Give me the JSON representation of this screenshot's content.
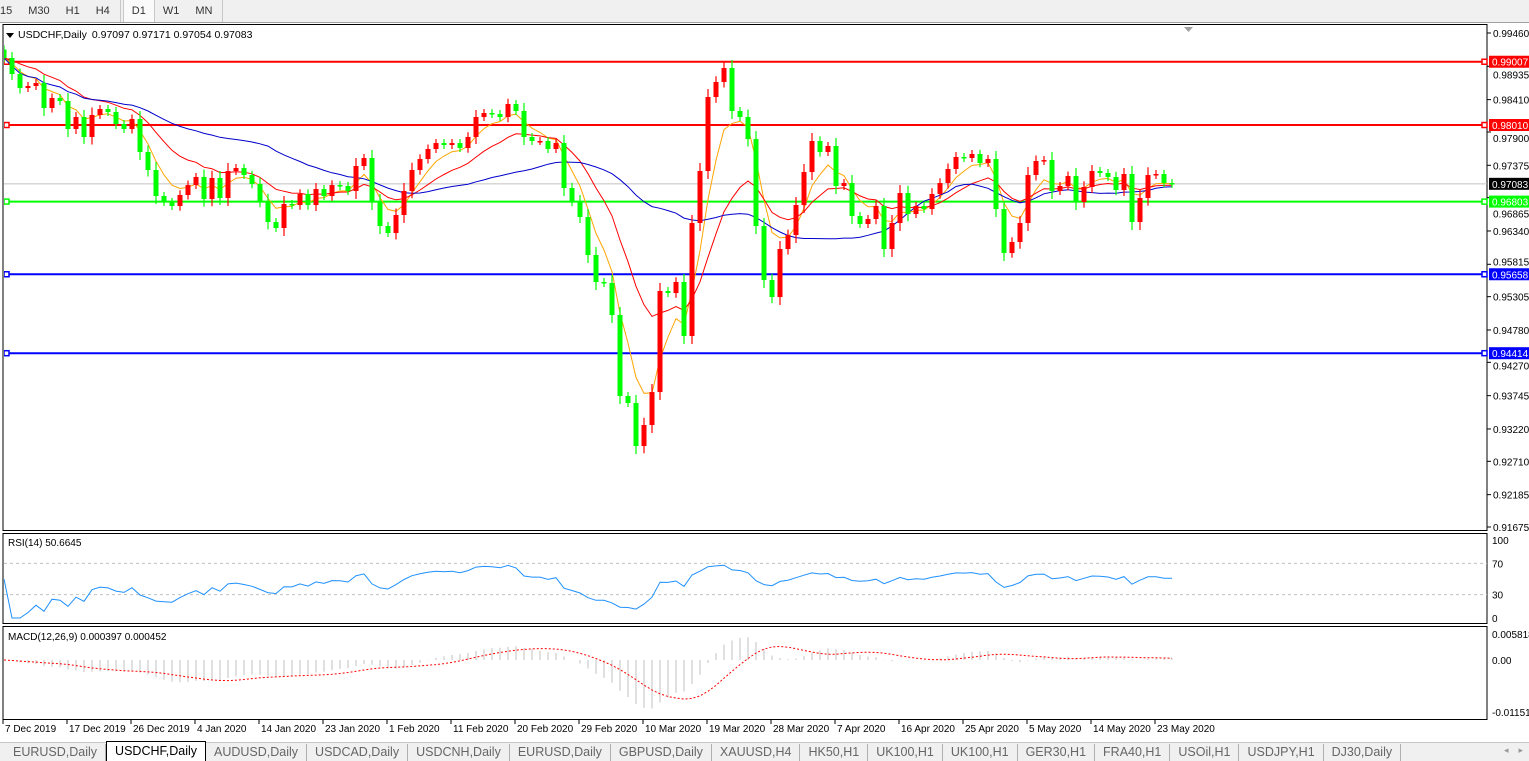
{
  "toolbar": {
    "timeframes": [
      "15",
      "M30",
      "H1",
      "H4",
      "D1",
      "W1",
      "MN"
    ],
    "active": "D1"
  },
  "chart": {
    "symbol_label": "USDCHF,Daily",
    "ohlc_label": "0.97097 0.97171 0.97054 0.97083",
    "dropdown_icon": "triangle-down",
    "bull_color": "#ff0000",
    "bear_color": "#00ff00",
    "ma_colors": [
      "#ffa500",
      "#ff0000",
      "#0000cc"
    ]
  },
  "price_axis": {
    "ticks": [
      "0.99460",
      "0.98935",
      "0.98410",
      "0.97900",
      "0.97375",
      "0.96865",
      "0.96340",
      "0.95815",
      "0.95305",
      "0.94780",
      "0.94270",
      "0.93745",
      "0.93220",
      "0.92710",
      "0.92185",
      "0.91675"
    ]
  },
  "hlines": [
    {
      "price": 0.99007,
      "label": "0.99007",
      "color": "#ff0000"
    },
    {
      "price": 0.9801,
      "label": "0.98010",
      "color": "#ff0000"
    },
    {
      "price": 0.96803,
      "label": "0.96803",
      "color": "#00ff00"
    },
    {
      "price": 0.95658,
      "label": "0.95658",
      "color": "#0000ff"
    },
    {
      "price": 0.94414,
      "label": "0.94414",
      "color": "#0000ff"
    }
  ],
  "current_price": {
    "price": 0.97083,
    "label": "0.97083"
  },
  "chart_data": {
    "type": "candlestick",
    "first_open": 0.992,
    "closes": [
      0.99066,
      0.98814,
      0.98593,
      0.98625,
      0.98672,
      0.98278,
      0.98436,
      0.98388,
      0.97947,
      0.98136,
      0.97821,
      0.98168,
      0.98262,
      0.98215,
      0.98026,
      0.97947,
      0.98105,
      0.97585,
      0.97301,
      0.96891,
      0.96797,
      0.96734,
      0.96907,
      0.97064,
      0.97191,
      0.96844,
      0.97175,
      0.9686,
      0.97285,
      0.97332,
      0.97222,
      0.9708,
      0.96812,
      0.96481,
      0.96387,
      0.96765,
      0.96749,
      0.96923,
      0.96749,
      0.97001,
      0.96891,
      0.97064,
      0.97049,
      0.9697,
      0.97364,
      0.9749,
      0.96797,
      0.96418,
      0.96308,
      0.96592,
      0.9697,
      0.97301,
      0.97474,
      0.97632,
      0.97726,
      0.97695,
      0.97726,
      0.97648,
      0.97821,
      0.98136,
      0.98199,
      0.98183,
      0.98136,
      0.98341,
      0.98231,
      0.97821,
      0.97758,
      0.97758,
      0.97632,
      0.97726,
      0.97017,
      0.96812,
      0.9656,
      0.95961,
      0.95536,
      0.9552,
      0.95016,
      0.93739,
      0.93629,
      0.92951,
      0.93282,
      0.93802,
      0.95394,
      0.95362,
      0.95536,
      0.94685,
      0.96466,
      0.97285,
      0.98451,
      0.98688,
      0.98908,
      0.98231,
      0.98136,
      0.97789,
      0.96418,
      0.95567,
      0.95299,
      0.96056,
      0.96276,
      0.96749,
      0.97269,
      0.97758,
      0.97585,
      0.97679,
      0.97049,
      0.97096,
      0.96576,
      0.9645,
      0.96529,
      0.96734,
      0.96056,
      0.96466,
      0.96938,
      0.96607,
      0.96734,
      0.96686,
      0.96923,
      0.97096,
      0.97317,
      0.97506,
      0.9749,
      0.97553,
      0.97411,
      0.97474,
      0.96686,
      0.95993,
      0.96166,
      0.96466,
      0.97222,
      0.97443,
      0.97458,
      0.9697,
      0.97049,
      0.97206,
      0.96797,
      0.97033,
      0.97285,
      0.97254,
      0.97191,
      0.96986,
      0.97238,
      0.96481,
      0.9686,
      0.97222,
      0.97238,
      0.97096,
      0.97083
    ],
    "date_labels": [
      "7 Dec 2019",
      "17 Dec 2019",
      "26 Dec 2019",
      "4 Jan 2020",
      "14 Jan 2020",
      "23 Jan 2020",
      "1 Feb 2020",
      "11 Feb 2020",
      "20 Feb 2020",
      "29 Feb 2020",
      "10 Mar 2020",
      "19 Mar 2020",
      "28 Mar 2020",
      "7 Apr 2020",
      "16 Apr 2020",
      "25 Apr 2020",
      "5 May 2020",
      "14 May 2020",
      "23 May 2020"
    ],
    "ylim": [
      0.91675,
      0.9946
    ]
  },
  "rsi": {
    "label": "RSI(14) 50.6645",
    "ticks": [
      "100",
      "70",
      "30",
      "0"
    ],
    "levels": [
      70,
      30
    ],
    "color": "#1e90ff"
  },
  "macd": {
    "label": "MACD(12,26,9) 0.000397 0.000452",
    "ticks": [
      "0.005818",
      "0.00",
      "-0.01151"
    ],
    "signal_color": "#ff0000",
    "hist_color": "#c0c0c0"
  },
  "tabs": [
    "EURUSD,Daily",
    "USDCHF,Daily",
    "AUDUSD,Daily",
    "USDCAD,Daily",
    "USDCNH,Daily",
    "EURUSD,Daily",
    "GBPUSD,Daily",
    "XAUUSD,H4",
    "HK50,H1",
    "UK100,H1",
    "UK100,H1",
    "GER30,H1",
    "FRA40,H1",
    "USOil,H1",
    "USDJPY,H1",
    "DJ30,Daily"
  ],
  "active_tab": "USDCHF,Daily",
  "tab_arrows": [
    "◂",
    "▸"
  ]
}
